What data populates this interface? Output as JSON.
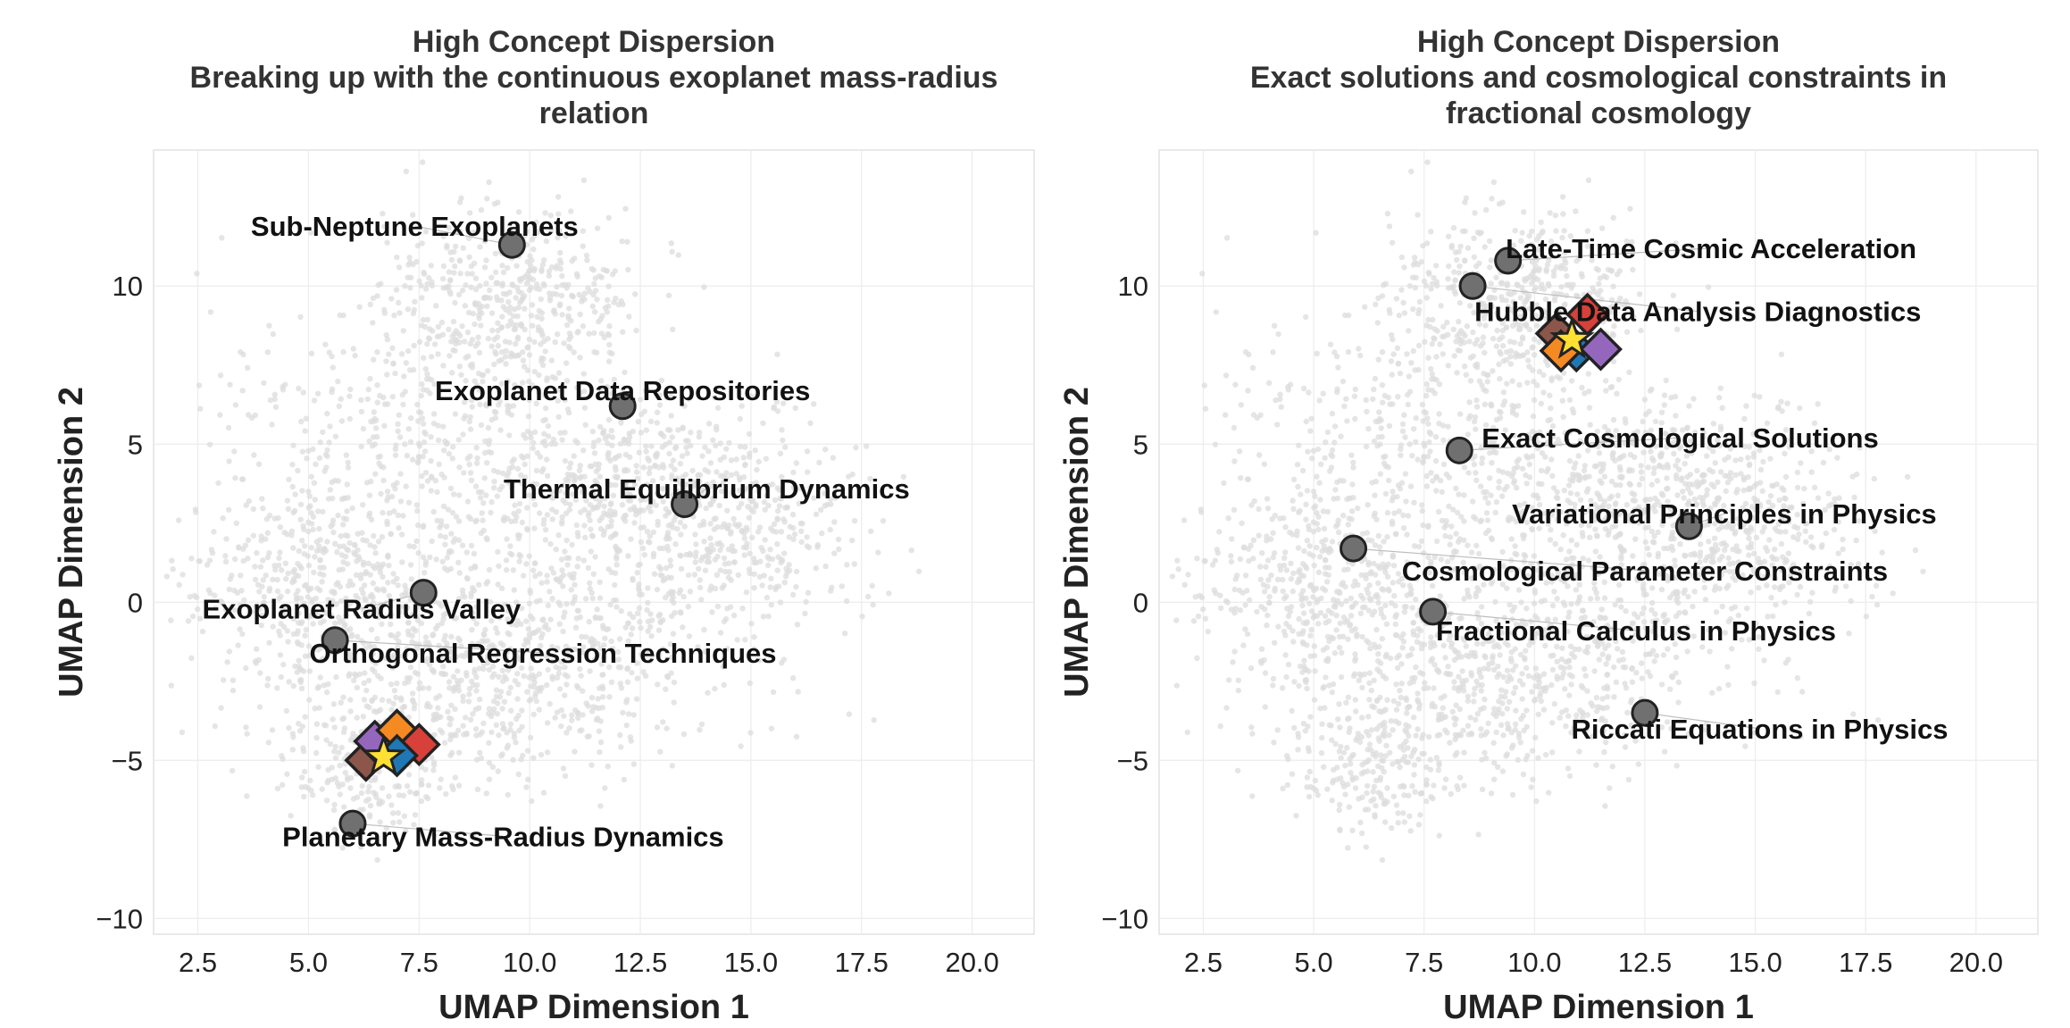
{
  "colors": {
    "background_points": "#dcdcdc",
    "concept_marker": "#707070",
    "marker_stroke": "#222222",
    "label_text": "#111111",
    "axis_text": "#222222",
    "title_text": "#333333",
    "grid": "#ececec",
    "frame": "#e2e2e2",
    "star": "#ffe033",
    "diamond_red": "#d8403a",
    "diamond_orange": "#f58a22",
    "diamond_purple": "#9467bd",
    "diamond_brown": "#8c564b",
    "diamond_blue": "#1f77b4"
  },
  "chart_data": [
    {
      "type": "scatter",
      "title": "High Concept Dispersion",
      "subtitle": "Breaking up with the continuous exoplanet mass-radius relation",
      "title_lines": [
        "High Concept Dispersion",
        "Breaking up with the continuous exoplanet mass-radius",
        "relation"
      ],
      "xlabel": "UMAP Dimension 1",
      "ylabel": "UMAP Dimension 2",
      "xlim": [
        1.5,
        21.4
      ],
      "ylim": [
        -10.5,
        14.3
      ],
      "xticks": [
        2.5,
        5.0,
        7.5,
        10.0,
        12.5,
        15.0,
        17.5,
        20.0
      ],
      "xtick_labels": [
        "2.5",
        "5.0",
        "7.5",
        "10.0",
        "12.5",
        "15.0",
        "17.5",
        "20.0"
      ],
      "yticks": [
        -10,
        -5,
        0,
        5,
        10
      ],
      "ytick_labels": [
        "−10",
        "−5",
        "0",
        "5",
        "10"
      ],
      "grid": true,
      "concepts": [
        {
          "label": "Sub-Neptune Exoplanets",
          "x": 9.6,
          "y": 11.3,
          "label_x": 7.4,
          "label_y": 11.9
        },
        {
          "label": "Exoplanet Data Repositories",
          "x": 12.1,
          "y": 6.2,
          "label_x": 12.1,
          "label_y": 6.7
        },
        {
          "label": "Thermal Equilibrium Dynamics",
          "x": 13.5,
          "y": 3.1,
          "label_x": 14.0,
          "label_y": 3.6
        },
        {
          "label": "Exoplanet Radius Valley",
          "x": 7.6,
          "y": 0.3,
          "label_x": 6.2,
          "label_y": -0.2
        },
        {
          "label": "Orthogonal Regression Techniques",
          "x": 5.6,
          "y": -1.2,
          "label_x": 10.3,
          "label_y": -1.6
        },
        {
          "label": "Planetary Mass-Radius Dynamics",
          "x": 6.0,
          "y": -7.0,
          "label_x": 9.4,
          "label_y": -7.4
        }
      ],
      "paper_markers": [
        {
          "shape": "diamond",
          "color": "#8c564b",
          "x": 6.3,
          "y": -5.0
        },
        {
          "shape": "diamond",
          "color": "#9467bd",
          "x": 6.5,
          "y": -4.4
        },
        {
          "shape": "diamond",
          "color": "#f58a22",
          "x": 7.0,
          "y": -4.05
        },
        {
          "shape": "diamond",
          "color": "#d8403a",
          "x": 7.5,
          "y": -4.5
        },
        {
          "shape": "diamond",
          "color": "#1f77b4",
          "x": 7.0,
          "y": -4.85
        },
        {
          "shape": "star",
          "color": "#ffe033",
          "x": 6.7,
          "y": -4.9
        }
      ],
      "background_cloud": [
        {
          "cx": 9.5,
          "cy": 9.5,
          "sx": 1.6,
          "sy": 1.6,
          "n": 500
        },
        {
          "cx": 7.5,
          "cy": 4.0,
          "sx": 2.4,
          "sy": 2.6,
          "n": 600
        },
        {
          "cx": 12.8,
          "cy": 3.5,
          "sx": 2.0,
          "sy": 1.6,
          "n": 550
        },
        {
          "cx": 5.0,
          "cy": 0.5,
          "sx": 1.4,
          "sy": 1.3,
          "n": 300
        },
        {
          "cx": 8.5,
          "cy": -2.5,
          "sx": 2.3,
          "sy": 1.6,
          "n": 500
        },
        {
          "cx": 6.5,
          "cy": -5.2,
          "sx": 0.9,
          "sy": 1.1,
          "n": 200
        },
        {
          "cx": 11.5,
          "cy": -1.0,
          "sx": 2.5,
          "sy": 2.0,
          "n": 350
        },
        {
          "cx": 15.0,
          "cy": 1.8,
          "sx": 1.2,
          "sy": 1.2,
          "n": 150
        }
      ]
    },
    {
      "type": "scatter",
      "title": "High Concept Dispersion",
      "subtitle": "Exact solutions and cosmological constraints in fractional cosmology",
      "title_lines": [
        "High Concept Dispersion",
        "Exact solutions and cosmological constraints in",
        "fractional cosmology"
      ],
      "xlabel": "UMAP Dimension 1",
      "ylabel": "UMAP Dimension 2",
      "xlim": [
        1.5,
        21.4
      ],
      "ylim": [
        -10.5,
        14.3
      ],
      "xticks": [
        2.5,
        5.0,
        7.5,
        10.0,
        12.5,
        15.0,
        17.5,
        20.0
      ],
      "xtick_labels": [
        "2.5",
        "5.0",
        "7.5",
        "10.0",
        "12.5",
        "15.0",
        "17.5",
        "20.0"
      ],
      "yticks": [
        -10,
        -5,
        0,
        5,
        10
      ],
      "ytick_labels": [
        "−10",
        "−5",
        "0",
        "5",
        "10"
      ],
      "grid": true,
      "concepts": [
        {
          "label": "Late-Time Cosmic Acceleration",
          "x": 9.4,
          "y": 10.8,
          "label_x": 14.0,
          "label_y": 11.2
        },
        {
          "label": "Hubble Data Analysis Diagnostics",
          "x": 8.6,
          "y": 10.0,
          "label_x": 13.7,
          "label_y": 9.2
        },
        {
          "label": "Exact Cosmological Solutions",
          "x": 8.3,
          "y": 4.8,
          "label_x": 13.3,
          "label_y": 5.2
        },
        {
          "label": "Variational Principles in Physics",
          "x": 13.5,
          "y": 2.4,
          "label_x": 14.3,
          "label_y": 2.8
        },
        {
          "label": "Cosmological Parameter Constraints",
          "x": 5.9,
          "y": 1.7,
          "label_x": 12.5,
          "label_y": 1.0
        },
        {
          "label": "Fractional Calculus in Physics",
          "x": 7.7,
          "y": -0.3,
          "label_x": 12.3,
          "label_y": -0.9
        },
        {
          "label": "Riccati Equations in Physics",
          "x": 12.5,
          "y": -3.5,
          "label_x": 15.1,
          "label_y": -4.0
        }
      ],
      "paper_markers": [
        {
          "shape": "diamond",
          "color": "#8c564b",
          "x": 10.5,
          "y": 8.5
        },
        {
          "shape": "diamond",
          "color": "#1f77b4",
          "x": 10.95,
          "y": 7.95
        },
        {
          "shape": "diamond",
          "color": "#f58a22",
          "x": 10.6,
          "y": 7.95
        },
        {
          "shape": "diamond",
          "color": "#d8403a",
          "x": 11.2,
          "y": 9.1
        },
        {
          "shape": "diamond",
          "color": "#9467bd",
          "x": 11.5,
          "y": 8.0
        },
        {
          "shape": "star",
          "color": "#ffe033",
          "x": 10.85,
          "y": 8.3
        }
      ],
      "background_cloud": [
        {
          "cx": 9.5,
          "cy": 9.5,
          "sx": 1.6,
          "sy": 1.6,
          "n": 500
        },
        {
          "cx": 7.5,
          "cy": 4.0,
          "sx": 2.4,
          "sy": 2.6,
          "n": 600
        },
        {
          "cx": 12.8,
          "cy": 3.5,
          "sx": 2.0,
          "sy": 1.6,
          "n": 550
        },
        {
          "cx": 5.0,
          "cy": 0.5,
          "sx": 1.4,
          "sy": 1.3,
          "n": 300
        },
        {
          "cx": 8.5,
          "cy": -2.5,
          "sx": 2.3,
          "sy": 1.6,
          "n": 500
        },
        {
          "cx": 6.5,
          "cy": -5.2,
          "sx": 0.9,
          "sy": 1.1,
          "n": 200
        },
        {
          "cx": 11.5,
          "cy": -1.0,
          "sx": 2.5,
          "sy": 2.0,
          "n": 350
        },
        {
          "cx": 15.0,
          "cy": 1.8,
          "sx": 1.2,
          "sy": 1.2,
          "n": 150
        }
      ]
    }
  ]
}
